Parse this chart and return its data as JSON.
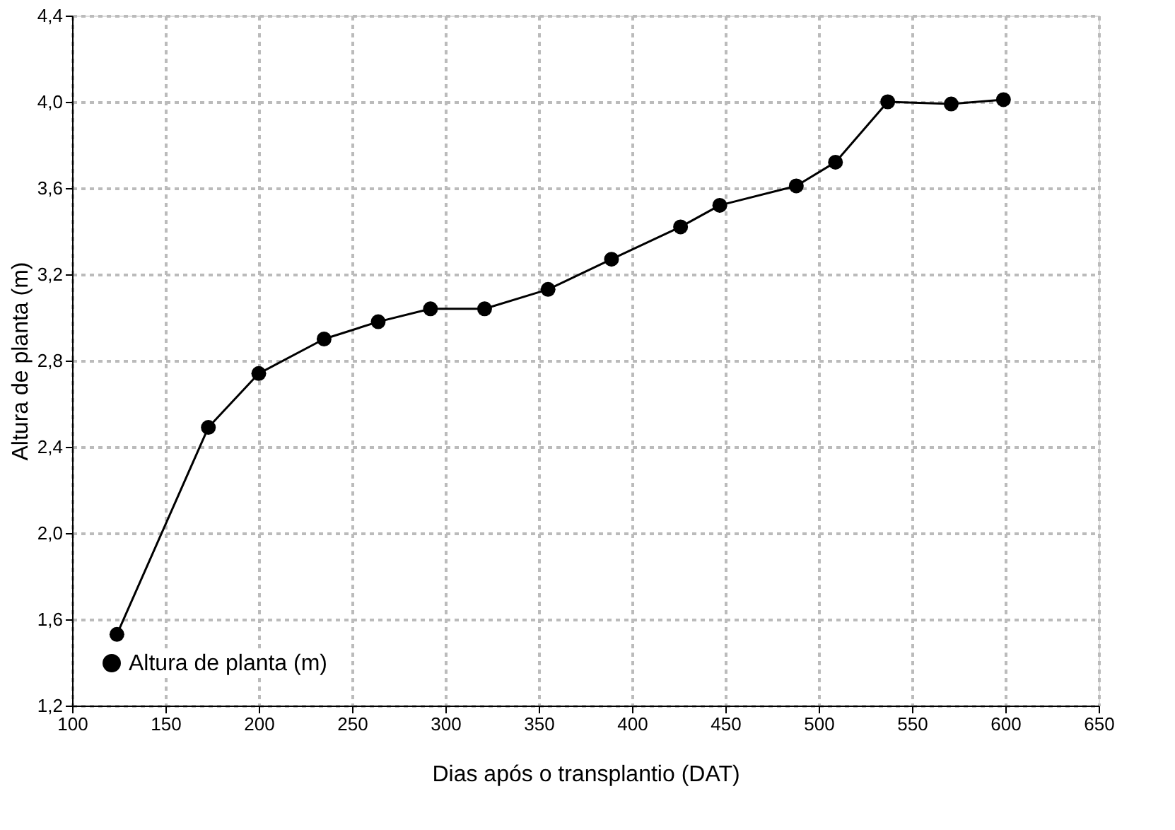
{
  "chart_data": {
    "type": "line",
    "xlabel": "Dias após o transplantio (DAT)",
    "ylabel": "Altura de planta (m)",
    "x": [
      124,
      173,
      200,
      235,
      264,
      292,
      321,
      355,
      389,
      426,
      447,
      488,
      509,
      537,
      571,
      599
    ],
    "series": [
      {
        "name": "Altura de planta (m)",
        "color": "#000000",
        "values": [
          1.53,
          2.49,
          2.74,
          2.9,
          2.98,
          3.04,
          3.04,
          3.13,
          3.27,
          3.42,
          3.52,
          3.61,
          3.72,
          4.0,
          3.99,
          4.01
        ]
      }
    ],
    "xlim": [
      100,
      650
    ],
    "xticks": [
      100,
      150,
      200,
      250,
      300,
      350,
      400,
      450,
      500,
      550,
      600,
      650
    ],
    "ylim": [
      1.2,
      4.4
    ],
    "yticks": [
      {
        "value": 1.2,
        "label": "1,2"
      },
      {
        "value": 1.6,
        "label": "1,6"
      },
      {
        "value": 2.0,
        "label": "2,0"
      },
      {
        "value": 2.4,
        "label": "2,4"
      },
      {
        "value": 2.8,
        "label": "2,8"
      },
      {
        "value": 3.2,
        "label": "3,2"
      },
      {
        "value": 3.6,
        "label": "3,6"
      },
      {
        "value": 4.0,
        "label": "4,0"
      },
      {
        "value": 4.4,
        "label": "4,4"
      }
    ],
    "grid": true,
    "legend": "bottom left",
    "marker": "circle",
    "line_style": "solid"
  }
}
